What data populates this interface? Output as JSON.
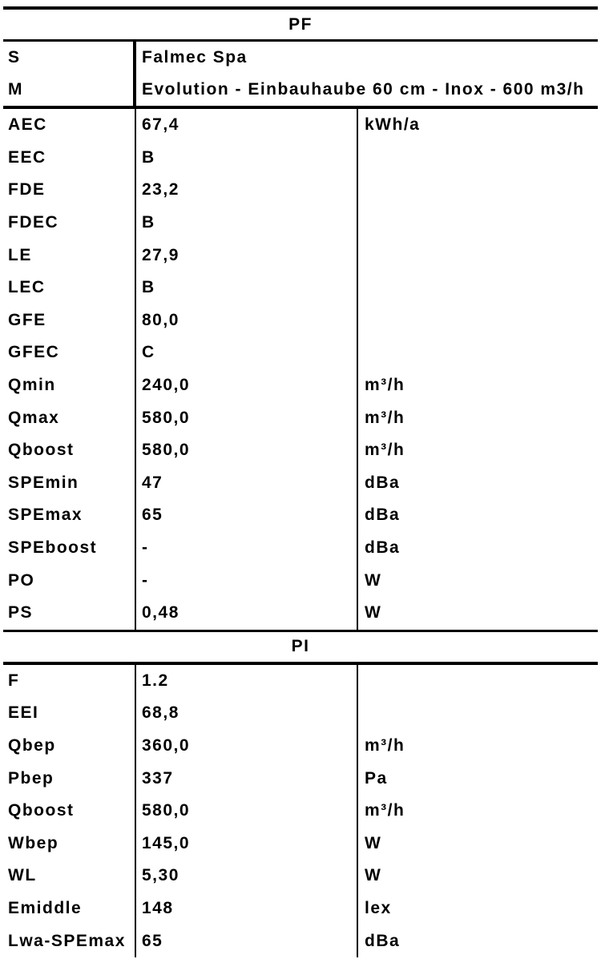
{
  "colors": {
    "text": "#000000",
    "background": "#ffffff",
    "line": "#000000"
  },
  "sections": [
    {
      "title": "PF",
      "meta": [
        {
          "label": "S",
          "value": "Falmec Spa"
        },
        {
          "label": "M",
          "value": "Evolution - Einbauhaube 60 cm - Inox - 600 m3/h"
        }
      ],
      "rows": [
        {
          "label": "AEC",
          "value": "67,4",
          "unit": "kWh/a"
        },
        {
          "label": "EEC",
          "value": "B",
          "unit": ""
        },
        {
          "label": "FDE",
          "value": "23,2",
          "unit": ""
        },
        {
          "label": "FDEC",
          "value": "B",
          "unit": ""
        },
        {
          "label": "LE",
          "value": "27,9",
          "unit": ""
        },
        {
          "label": "LEC",
          "value": "B",
          "unit": ""
        },
        {
          "label": "GFE",
          "value": "80,0",
          "unit": ""
        },
        {
          "label": "GFEC",
          "value": "C",
          "unit": ""
        },
        {
          "label": "Qmin",
          "value": "240,0",
          "unit": "m³/h"
        },
        {
          "label": "Qmax",
          "value": "580,0",
          "unit": "m³/h"
        },
        {
          "label": "Qboost",
          "value": "580,0",
          "unit": "m³/h"
        },
        {
          "label": "SPEmin",
          "value": "47",
          "unit": "dBa"
        },
        {
          "label": "SPEmax",
          "value": "65",
          "unit": "dBa"
        },
        {
          "label": "SPEboost",
          "value": "-",
          "unit": "dBa"
        },
        {
          "label": "PO",
          "value": "-",
          "unit": "W"
        },
        {
          "label": "PS",
          "value": "0,48",
          "unit": "W"
        }
      ]
    },
    {
      "title": "PI",
      "rows": [
        {
          "label": "F",
          "value": "1.2",
          "unit": ""
        },
        {
          "label": "EEI",
          "value": "68,8",
          "unit": ""
        },
        {
          "label": "Qbep",
          "value": "360,0",
          "unit": "m³/h"
        },
        {
          "label": "Pbep",
          "value": "337",
          "unit": "Pa"
        },
        {
          "label": "Qboost",
          "value": "580,0",
          "unit": "m³/h"
        },
        {
          "label": "Wbep",
          "value": "145,0",
          "unit": "W"
        },
        {
          "label": "WL",
          "value": "5,30",
          "unit": "W"
        },
        {
          "label": "Emiddle",
          "value": "148",
          "unit": "lex"
        },
        {
          "label": "Lwa-SPEmax",
          "value": "65",
          "unit": "dBa"
        }
      ]
    }
  ]
}
